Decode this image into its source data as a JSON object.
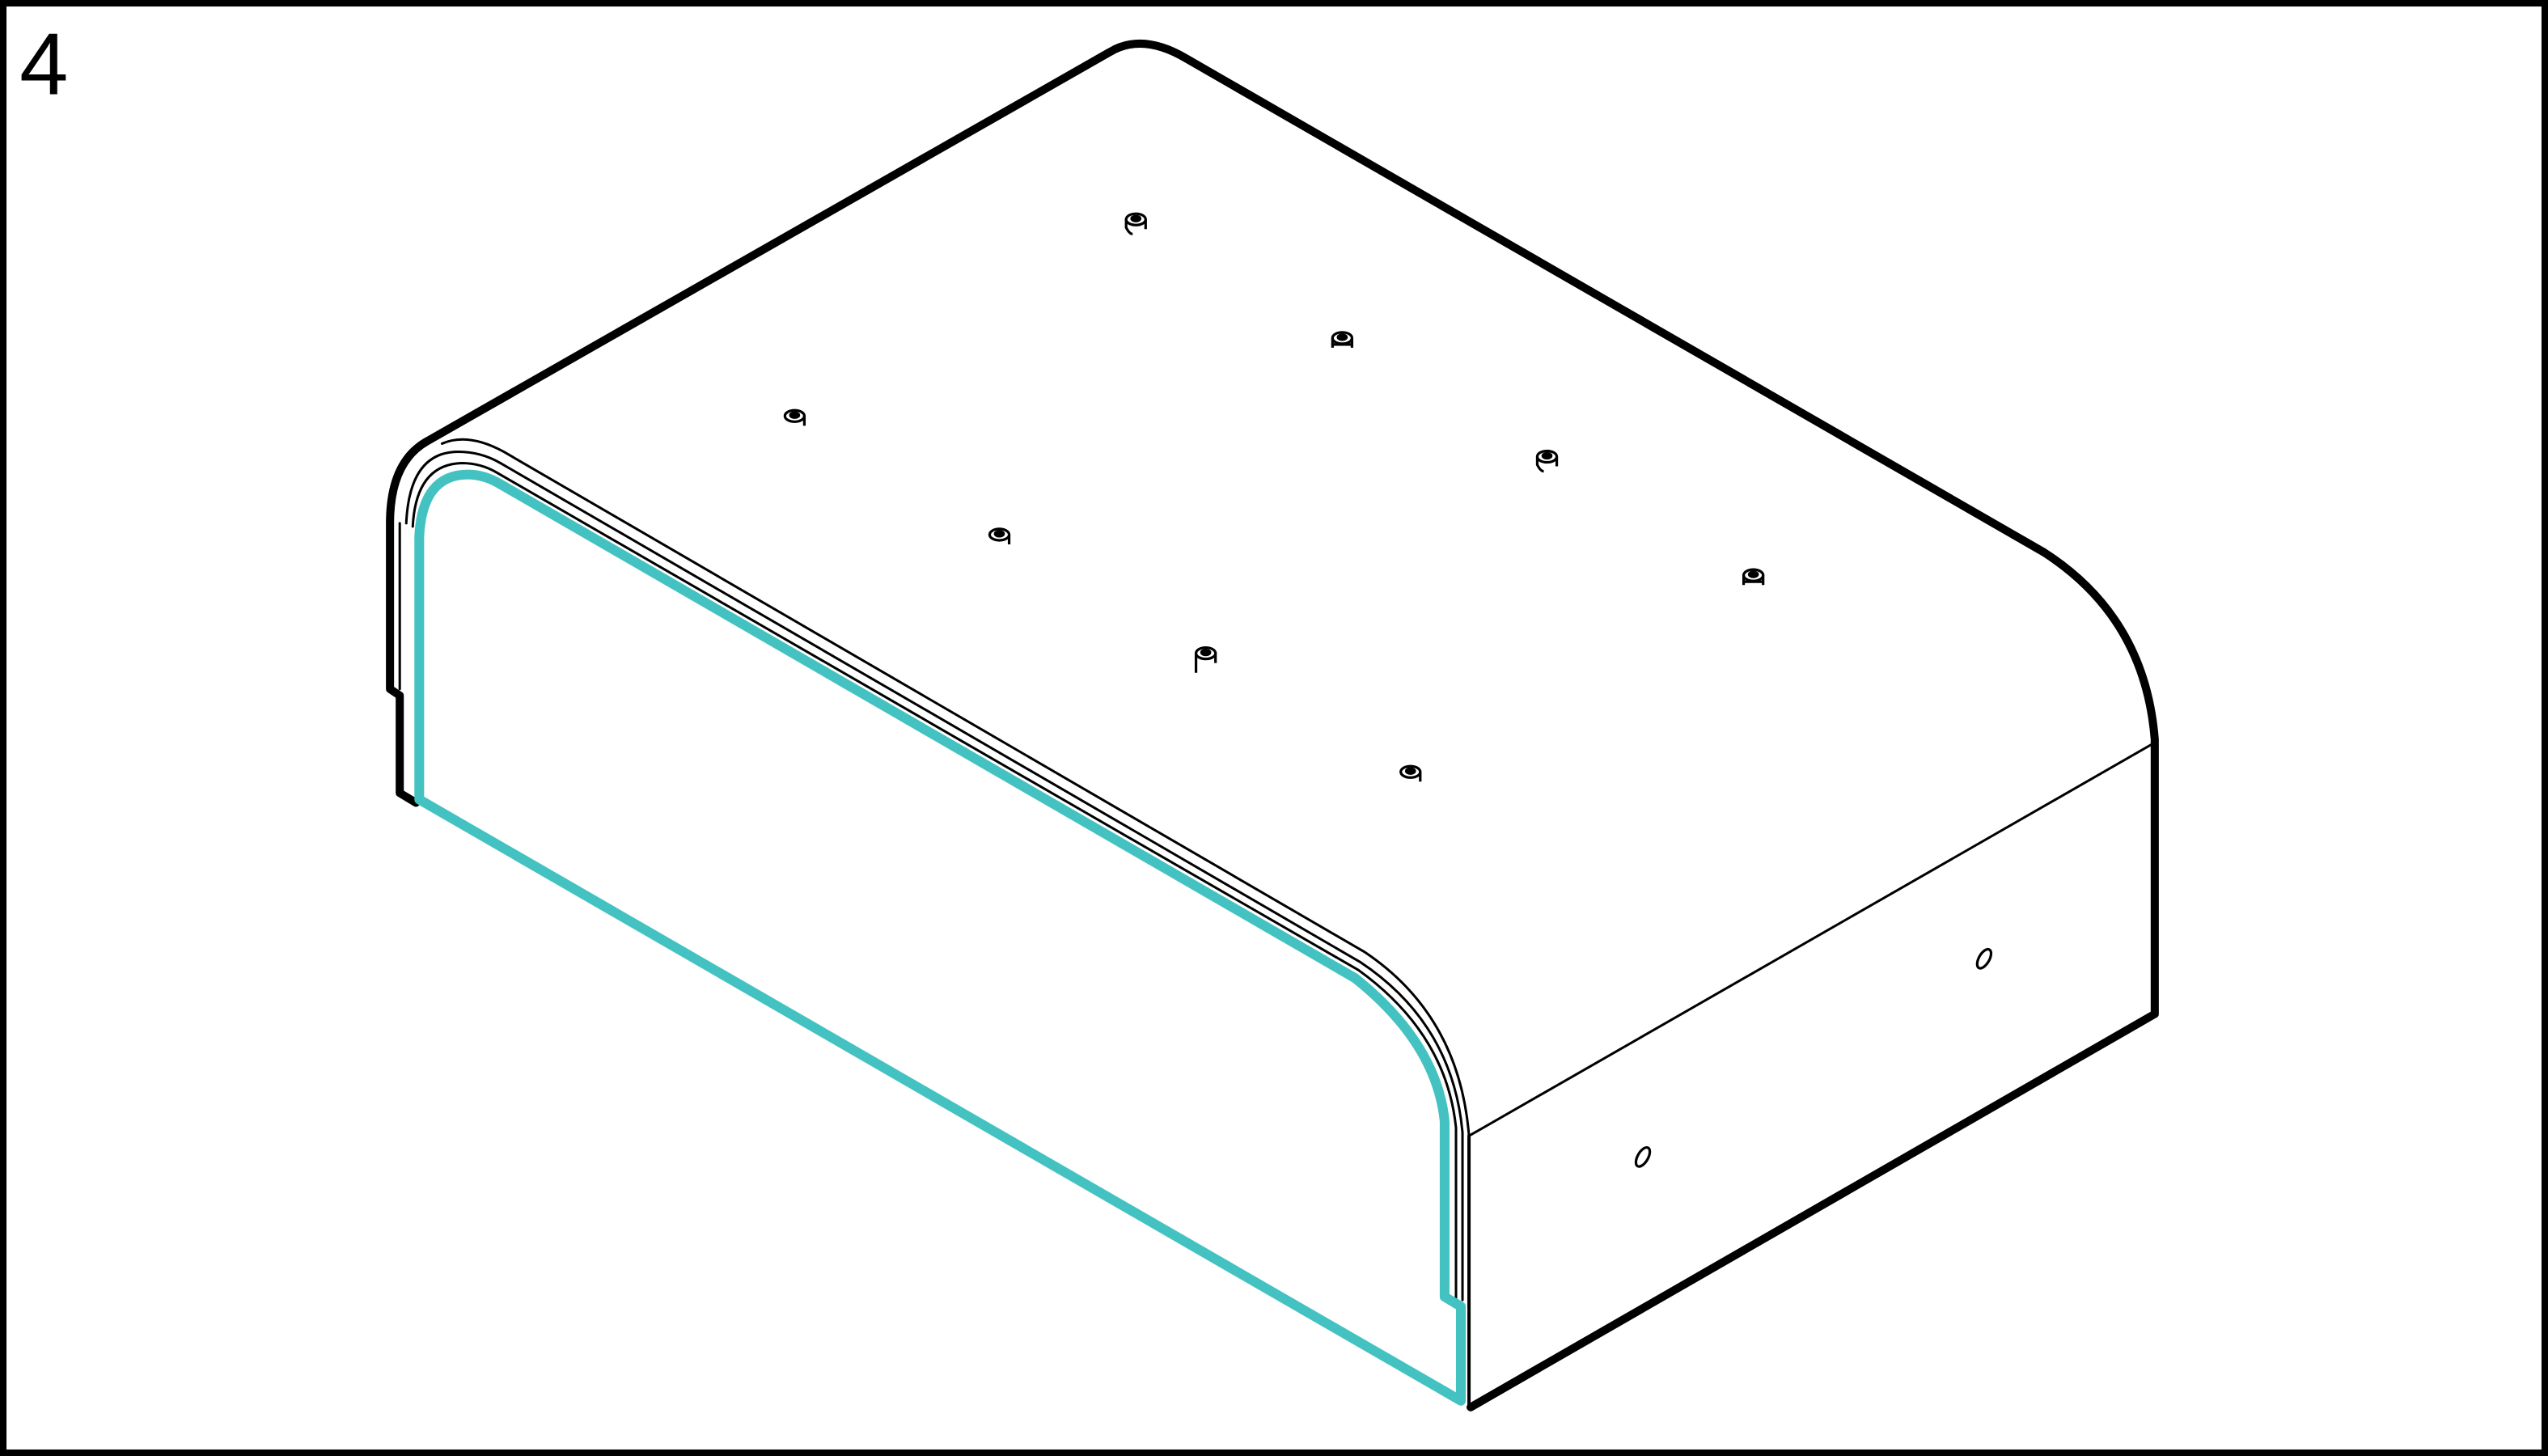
{
  "diagram": {
    "step_number": "4",
    "highlight_color": "#44c2c2",
    "outline_color": "#000000",
    "background_color": "#ffffff",
    "parts": [
      "cabinet-body",
      "front-panel",
      "top-panel-dowels",
      "side-panel-cam-holes"
    ]
  }
}
